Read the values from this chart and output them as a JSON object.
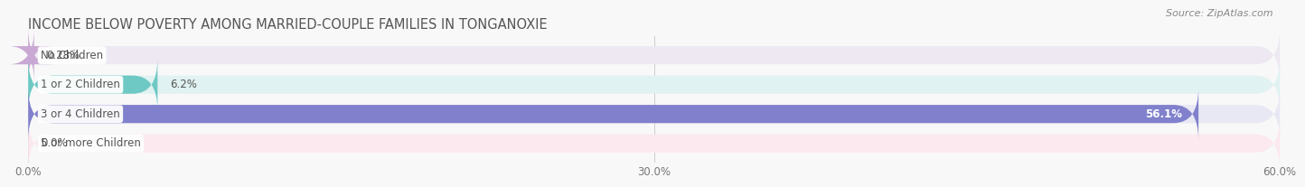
{
  "title": "INCOME BELOW POVERTY AMONG MARRIED-COUPLE FAMILIES IN TONGANOXIE",
  "source": "Source: ZipAtlas.com",
  "categories": [
    "No Children",
    "1 or 2 Children",
    "3 or 4 Children",
    "5 or more Children"
  ],
  "values": [
    0.28,
    6.2,
    56.1,
    0.0
  ],
  "bar_colors": [
    "#c9a8d4",
    "#6ec9c4",
    "#8080cc",
    "#f4a0b8"
  ],
  "bg_colors": [
    "#ede8f2",
    "#e0f2f1",
    "#e8e8f4",
    "#fce8ef"
  ],
  "value_labels": [
    "0.28%",
    "6.2%",
    "56.1%",
    "0.0%"
  ],
  "value_label_inside": [
    false,
    false,
    true,
    false
  ],
  "xlim": [
    0,
    60.0
  ],
  "xticks": [
    0.0,
    30.0,
    60.0
  ],
  "xtick_labels": [
    "0.0%",
    "30.0%",
    "60.0%"
  ],
  "title_fontsize": 10.5,
  "bar_label_fontsize": 8.5,
  "value_fontsize": 8.5,
  "source_fontsize": 8,
  "bar_height": 0.62,
  "background_color": "#f8f8f8"
}
